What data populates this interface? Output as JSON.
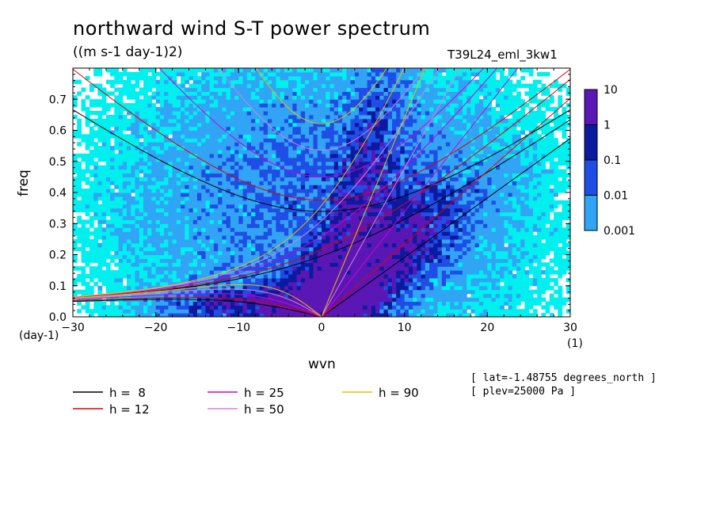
{
  "title": "northward wind S-T power spectrum",
  "units": "((m s-1 day-1)2)",
  "model": "T39L24_eml_3kw1",
  "meta": [
    "[ lat=-1.48755 degrees_north ]",
    "[ plev=25000 Pa ]"
  ],
  "chart_data": {
    "type": "heatmap",
    "xlabel": "wvn",
    "ylabel": "freq",
    "x_unit": "(1)",
    "y_unit": "(day-1)",
    "xlim": [
      -30,
      30
    ],
    "ylim": [
      0,
      0.8
    ],
    "xticks": [
      -30,
      -20,
      -10,
      0,
      10,
      20,
      30
    ],
    "yticks": [
      0.0,
      0.1,
      0.2,
      0.3,
      0.4,
      0.5,
      0.6,
      0.7
    ],
    "colorbar": {
      "levels": [
        "10",
        "1",
        "0.1",
        "0.01",
        "0.001"
      ],
      "colors": [
        "#5a17b5",
        "#0b1a9e",
        "#1f4de6",
        "#31a4f5",
        "#00f0f0"
      ]
    },
    "contour_regions": [
      {
        "level": 0,
        "description": "0.001-0.01",
        "x_range": [
          -26,
          25
        ],
        "y_range": [
          0.0,
          0.8
        ]
      },
      {
        "level": 1,
        "description": "0.01-0.1",
        "x_range": [
          -8,
          16
        ],
        "y_range": [
          0.0,
          0.4
        ]
      },
      {
        "level": 2,
        "description": "0.1-1",
        "x_range": [
          -6,
          9
        ],
        "y_range": [
          0.0,
          0.25
        ]
      },
      {
        "level": 3,
        "description": "1-10",
        "x_range": [
          -3,
          3
        ],
        "y_range": [
          0.0,
          0.08
        ]
      }
    ],
    "series": [
      {
        "name": "h =  8",
        "color": "#000000"
      },
      {
        "name": "h = 12",
        "color": "#e00000"
      },
      {
        "name": "h = 25",
        "color": "#d000d0"
      },
      {
        "name": "h = 50",
        "color": "#d880d8"
      },
      {
        "name": "h = 90",
        "color": "#e8c000"
      }
    ],
    "grid": false,
    "legend_position": "bottom"
  }
}
